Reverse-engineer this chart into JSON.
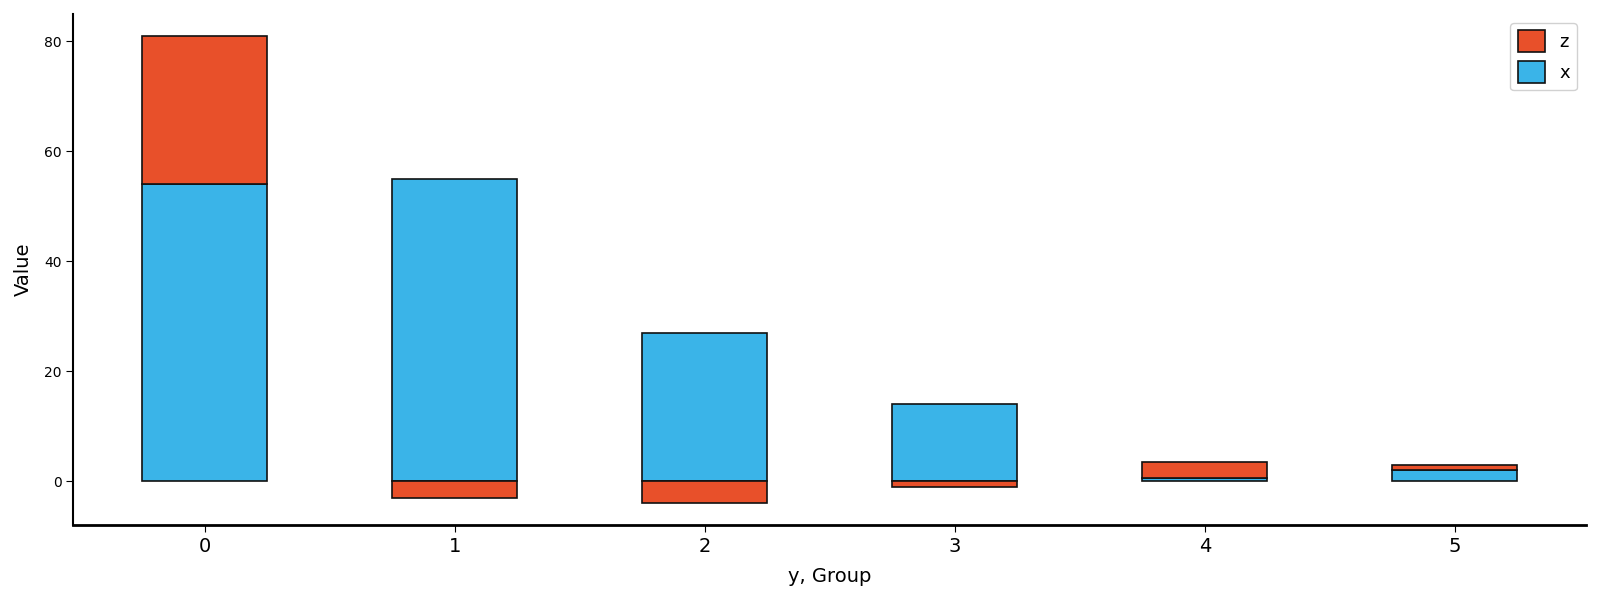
{
  "groups": [
    0,
    1,
    2,
    3,
    4,
    5
  ],
  "x_values": [
    54,
    55,
    27,
    14,
    0.5,
    2.0
  ],
  "z_values": [
    27,
    -3,
    -4,
    -1,
    3,
    1
  ],
  "x_color": "#3ab4e8",
  "z_color": "#e8502a",
  "xlabel": "y, Group",
  "ylabel": "Value",
  "edgecolor": "#111111",
  "legend_labels": [
    "z",
    "x"
  ],
  "ylim": [
    -8,
    85
  ],
  "bar_width": 0.5
}
